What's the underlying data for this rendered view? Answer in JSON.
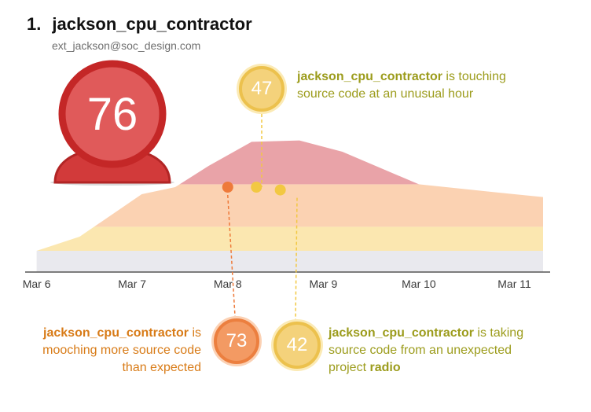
{
  "user": {
    "rank": "1.",
    "name": "jackson_cpu_contractor",
    "email": "ext_jackson@soc_design.com",
    "risk_score": "76"
  },
  "colors": {
    "avatar_red": "#d23a3a",
    "critical_band": "#e9a3a8",
    "high_band": "#fbd2b2",
    "medium_band": "#fbe7b0",
    "low_band": "#e9e9ee",
    "orange_marker": "#ee7a3a",
    "yellow_marker": "#f2c842"
  },
  "callouts": [
    {
      "score": "47",
      "user": "jackson_cpu_contractor",
      "text": "is touching source code at an unusual hour",
      "text_line1": "is touching",
      "text_line2": "source code at an unusual hour"
    },
    {
      "score": "73",
      "user": "jackson_cpu_contractor",
      "text": "is mooching more source code than expected",
      "text_line1": "is",
      "text_line2": "mooching more source code",
      "text_line3": "than expected"
    },
    {
      "score": "42",
      "user": "jackson_cpu_contractor",
      "text_line1": "is taking",
      "text_line2": "source code from an unexpected",
      "text_line3": "project",
      "project": "radio"
    }
  ],
  "chart_data": {
    "type": "area",
    "categories": [
      "Mar 6",
      "Mar 7",
      "Mar 8",
      "Mar 9",
      "Mar 10",
      "Mar 11"
    ],
    "x": [
      0,
      0.45,
      1.1,
      1.45,
      1.8,
      2.25,
      2.75,
      3.2,
      4.0,
      5.0,
      5.3
    ],
    "series": [
      {
        "values": [
          15,
          25,
          55,
          60,
          62,
          62,
          62,
          62,
          58,
          55,
          53
        ]
      },
      {
        "values": [
          15,
          25,
          55,
          60,
          75,
          92,
          93,
          85,
          62,
          55,
          53
        ]
      }
    ],
    "bands": [
      {
        "from": 0,
        "to": 15
      },
      {
        "from": 15,
        "to": 32
      },
      {
        "from": 32,
        "to": 62
      },
      {
        "from": 62,
        "to": 100
      }
    ],
    "xlim": [
      -0.12,
      5.3
    ],
    "ylim": [
      0,
      100
    ],
    "events": [
      {
        "x": 2.0,
        "y": 60,
        "score": 73,
        "kind": "orange"
      },
      {
        "x": 2.3,
        "y": 60,
        "score": 47,
        "kind": "yellow"
      },
      {
        "x": 2.55,
        "y": 58,
        "score": 42,
        "kind": "yellow"
      }
    ],
    "grid": false,
    "legend": "none"
  }
}
